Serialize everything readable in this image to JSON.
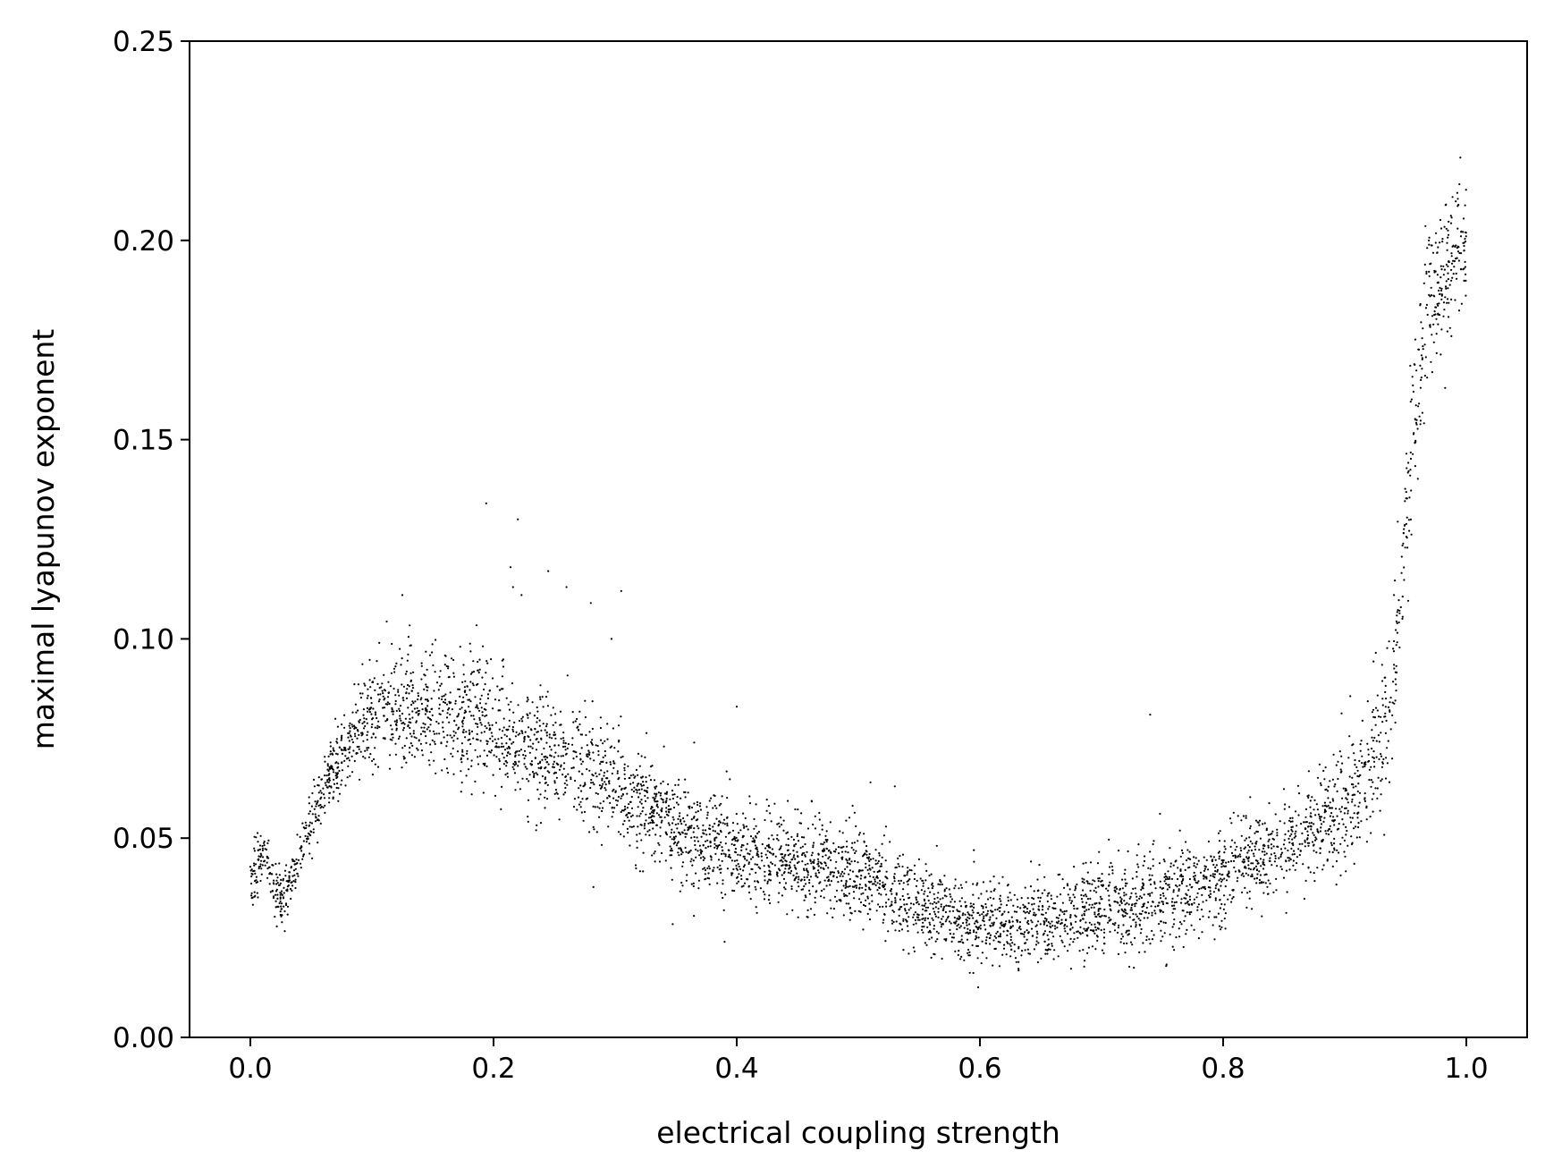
{
  "chart_data": {
    "type": "scatter",
    "title": "",
    "xlabel": "electrical coupling strength",
    "ylabel": "maximal lyapunov exponent",
    "xlim": [
      -0.05,
      1.05
    ],
    "ylim": [
      0.0,
      0.25
    ],
    "xticks": [
      0.0,
      0.2,
      0.4,
      0.6,
      0.8,
      1.0
    ],
    "xtick_labels": [
      "0.0",
      "0.2",
      "0.4",
      "0.6",
      "0.8",
      "1.0"
    ],
    "yticks": [
      0.0,
      0.05,
      0.1,
      0.15,
      0.2,
      0.25
    ],
    "ytick_labels": [
      "0.00",
      "0.05",
      "0.10",
      "0.15",
      "0.20",
      "0.25"
    ],
    "grid": false,
    "legend": "none",
    "marker_color": "#000000",
    "series": [
      {
        "x_range": [
          0.0,
          1.0
        ],
        "n_points_approx": 5000,
        "trend": [
          [
            0.0,
            0.037
          ],
          [
            0.005,
            0.043
          ],
          [
            0.012,
            0.048
          ],
          [
            0.02,
            0.037
          ],
          [
            0.028,
            0.035
          ],
          [
            0.035,
            0.041
          ],
          [
            0.045,
            0.05
          ],
          [
            0.055,
            0.057
          ],
          [
            0.065,
            0.066
          ],
          [
            0.075,
            0.071
          ],
          [
            0.085,
            0.076
          ],
          [
            0.1,
            0.08
          ],
          [
            0.125,
            0.083
          ],
          [
            0.15,
            0.083
          ],
          [
            0.175,
            0.082
          ],
          [
            0.2,
            0.078
          ],
          [
            0.225,
            0.073
          ],
          [
            0.25,
            0.071
          ],
          [
            0.275,
            0.067
          ],
          [
            0.3,
            0.063
          ],
          [
            0.325,
            0.058
          ],
          [
            0.35,
            0.053
          ],
          [
            0.375,
            0.049
          ],
          [
            0.4,
            0.047
          ],
          [
            0.45,
            0.044
          ],
          [
            0.5,
            0.041
          ],
          [
            0.55,
            0.033
          ],
          [
            0.6,
            0.028
          ],
          [
            0.65,
            0.029
          ],
          [
            0.7,
            0.032
          ],
          [
            0.75,
            0.035
          ],
          [
            0.8,
            0.041
          ],
          [
            0.85,
            0.048
          ],
          [
            0.875,
            0.052
          ],
          [
            0.9,
            0.058
          ],
          [
            0.92,
            0.065
          ],
          [
            0.93,
            0.075
          ],
          [
            0.94,
            0.09
          ],
          [
            0.95,
            0.13
          ],
          [
            0.96,
            0.165
          ],
          [
            0.97,
            0.185
          ],
          [
            0.98,
            0.19
          ],
          [
            0.99,
            0.197
          ],
          [
            1.0,
            0.2
          ]
        ],
        "spread": [
          [
            0.0,
            0.004
          ],
          [
            0.03,
            0.003
          ],
          [
            0.06,
            0.004
          ],
          [
            0.1,
            0.007
          ],
          [
            0.2,
            0.008
          ],
          [
            0.3,
            0.007
          ],
          [
            0.4,
            0.006
          ],
          [
            0.5,
            0.006
          ],
          [
            0.6,
            0.005
          ],
          [
            0.7,
            0.006
          ],
          [
            0.8,
            0.006
          ],
          [
            0.9,
            0.007
          ],
          [
            0.94,
            0.01
          ],
          [
            0.96,
            0.012
          ],
          [
            1.0,
            0.008
          ]
        ],
        "outliers": [
          [
            0.194,
            0.134
          ],
          [
            0.22,
            0.13
          ],
          [
            0.214,
            0.118
          ],
          [
            0.216,
            0.113
          ],
          [
            0.223,
            0.111
          ],
          [
            0.245,
            0.117
          ],
          [
            0.26,
            0.113
          ],
          [
            0.28,
            0.109
          ],
          [
            0.305,
            0.112
          ],
          [
            0.297,
            0.1
          ],
          [
            0.4,
            0.083
          ],
          [
            0.365,
            0.074
          ],
          [
            0.74,
            0.081
          ],
          [
            0.51,
            0.064
          ],
          [
            0.53,
            0.063
          ],
          [
            0.39,
            0.024
          ],
          [
            0.56,
            0.02
          ],
          [
            0.595,
            0.047
          ],
          [
            0.235,
            0.052
          ],
          [
            0.125,
            0.111
          ]
        ]
      }
    ]
  }
}
